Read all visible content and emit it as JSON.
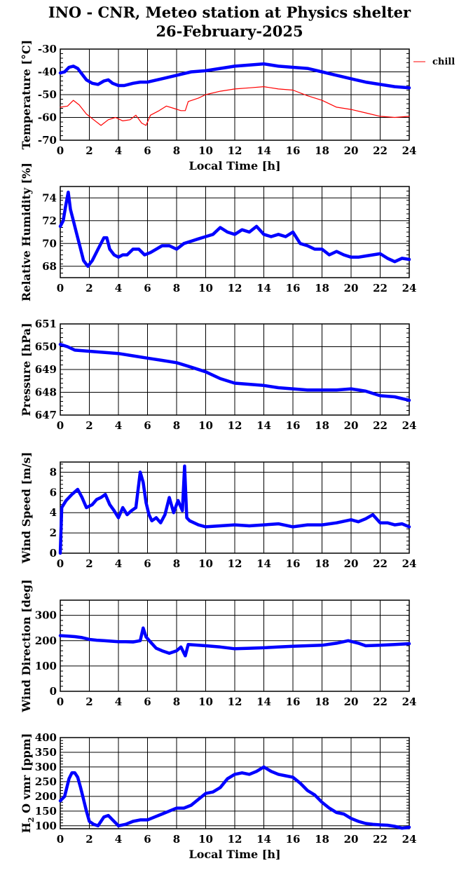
{
  "title_line1": "INO - CNR, Meteo station at Physics shelter",
  "title_line2": "26-February-2025",
  "chart_data": [
    {
      "type": "line",
      "ylabel": "Temperature [°C]",
      "xlabel": "Local Time [h]",
      "xlim": [
        0,
        24
      ],
      "ylim": [
        -70,
        -30
      ],
      "xticks": [
        0,
        2,
        4,
        6,
        8,
        10,
        12,
        14,
        16,
        18,
        20,
        22,
        24
      ],
      "yticks": [
        -70,
        -60,
        -50,
        -40,
        -30
      ],
      "legend": "right",
      "series": [
        {
          "role": "main",
          "color": "#0000ff",
          "x": [
            0,
            0.3,
            0.6,
            0.9,
            1.2,
            1.5,
            1.8,
            2.2,
            2.6,
            3.0,
            3.3,
            3.6,
            4.0,
            4.4,
            5,
            5.5,
            6,
            7,
            8,
            9,
            10,
            11,
            12,
            13,
            14,
            15,
            16,
            17,
            18,
            19,
            20,
            21,
            22,
            23,
            24
          ],
          "y": [
            -40.5,
            -40,
            -38,
            -37.5,
            -38.5,
            -41,
            -43.5,
            -45,
            -45.5,
            -44,
            -43.5,
            -45,
            -46,
            -46,
            -45,
            -44.5,
            -44.5,
            -43,
            -41.5,
            -40,
            -39.5,
            -38.5,
            -37.5,
            -37,
            -36.5,
            -37.5,
            -38,
            -38.5,
            -40,
            -41.5,
            -43,
            -44.5,
            -45.5,
            -46.5,
            -47
          ]
        },
        {
          "role": "chill",
          "name": "chill",
          "color": "#ff0000",
          "x": [
            0,
            0.5,
            0.9,
            1.3,
            1.8,
            2.3,
            2.8,
            3.3,
            3.8,
            4.3,
            4.8,
            5.2,
            5.6,
            5.9,
            6.2,
            6.8,
            7.3,
            7.8,
            8.3,
            8.6,
            8.8,
            9.5,
            10,
            11,
            12,
            13,
            14,
            15,
            16,
            17,
            18,
            19,
            20,
            21,
            22,
            23,
            24
          ],
          "y": [
            -55.5,
            -55,
            -52.5,
            -54.5,
            -58.5,
            -61,
            -63.5,
            -61,
            -60,
            -61.5,
            -61,
            -59,
            -62.5,
            -63.5,
            -59,
            -57,
            -55,
            -56,
            -57,
            -57,
            -53,
            -51.5,
            -50,
            -48.5,
            -47.5,
            -47,
            -46.5,
            -47.5,
            -48,
            -50.5,
            -52.5,
            -55.5,
            -56.5,
            -58,
            -59.5,
            -60,
            -59.5
          ]
        }
      ]
    },
    {
      "type": "line",
      "ylabel": "Relative Humidity [%]",
      "xlabel": "",
      "xlim": [
        0,
        24
      ],
      "ylim": [
        67,
        75
      ],
      "xticks": [
        0,
        2,
        4,
        6,
        8,
        10,
        12,
        14,
        16,
        18,
        20,
        22,
        24
      ],
      "yticks": [
        68,
        70,
        72,
        74
      ],
      "series": [
        {
          "color": "#0000ff",
          "x": [
            0,
            0.2,
            0.4,
            0.55,
            0.7,
            0.9,
            1.1,
            1.3,
            1.6,
            1.9,
            2.2,
            2.6,
            3.0,
            3.2,
            3.4,
            3.7,
            4.0,
            4.3,
            4.6,
            5.0,
            5.4,
            5.8,
            6.2,
            6.6,
            7.0,
            7.5,
            8.0,
            8.5,
            9.0,
            9.5,
            10,
            10.5,
            11,
            11.5,
            12,
            12.5,
            13,
            13.5,
            14,
            14.5,
            15,
            15.5,
            16,
            16.5,
            17,
            17.5,
            18,
            18.5,
            19,
            19.5,
            20,
            20.5,
            21,
            21.5,
            22,
            22.5,
            23,
            23.5,
            24
          ],
          "y": [
            71.5,
            72,
            73.5,
            74.5,
            73,
            72,
            71,
            70,
            68.5,
            68,
            68.5,
            69.5,
            70.5,
            70.5,
            69.5,
            69,
            68.8,
            69,
            69,
            69.5,
            69.5,
            69,
            69.2,
            69.5,
            69.8,
            69.8,
            69.5,
            70,
            70.2,
            70.4,
            70.6,
            70.8,
            71.4,
            71,
            70.8,
            71.2,
            71,
            71.5,
            70.8,
            70.6,
            70.8,
            70.6,
            71,
            70,
            69.8,
            69.5,
            69.5,
            69,
            69.3,
            69,
            68.8,
            68.8,
            68.9,
            69,
            69.1,
            68.7,
            68.4,
            68.7,
            68.6
          ]
        }
      ]
    },
    {
      "type": "line",
      "ylabel": "Pressure [hPa]",
      "xlabel": "",
      "xlim": [
        0,
        24
      ],
      "ylim": [
        647,
        651
      ],
      "xticks": [
        0,
        2,
        4,
        6,
        8,
        10,
        12,
        14,
        16,
        18,
        20,
        22,
        24
      ],
      "yticks": [
        647,
        648,
        649,
        650,
        651
      ],
      "series": [
        {
          "color": "#0000ff",
          "x": [
            0,
            0.5,
            1,
            2,
            3,
            4,
            5,
            6,
            7,
            8,
            9,
            10,
            11,
            12,
            13,
            14,
            15,
            16,
            17,
            18,
            19,
            20,
            21,
            22,
            23,
            24
          ],
          "y": [
            650.1,
            650,
            649.85,
            649.8,
            649.75,
            649.7,
            649.6,
            649.5,
            649.4,
            649.3,
            649.1,
            648.9,
            648.6,
            648.4,
            648.35,
            648.3,
            648.2,
            648.15,
            648.1,
            648.1,
            648.1,
            648.15,
            648.05,
            647.85,
            647.8,
            647.65
          ]
        }
      ]
    },
    {
      "type": "line",
      "ylabel": "Wind Speed [m/s]",
      "xlabel": "",
      "xlim": [
        0,
        24
      ],
      "ylim": [
        0,
        9
      ],
      "xticks": [
        0,
        2,
        4,
        6,
        8,
        10,
        12,
        14,
        16,
        18,
        20,
        22,
        24
      ],
      "yticks": [
        0,
        2,
        4,
        6,
        8
      ],
      "series": [
        {
          "color": "#0000ff",
          "x": [
            0,
            0.1,
            0.4,
            0.8,
            1.2,
            1.5,
            1.8,
            2.2,
            2.5,
            2.8,
            3.1,
            3.4,
            3.7,
            4.0,
            4.3,
            4.6,
            4.9,
            5.2,
            5.5,
            5.7,
            5.9,
            6.1,
            6.3,
            6.6,
            6.9,
            7.2,
            7.5,
            7.8,
            8.1,
            8.4,
            8.55,
            8.7,
            8.9,
            9.5,
            10,
            11,
            12,
            13,
            14,
            15,
            16,
            17,
            18,
            19,
            20,
            20.5,
            21,
            21.5,
            22,
            22.5,
            23,
            23.5,
            24
          ],
          "y": [
            0,
            4.5,
            5.2,
            5.8,
            6.3,
            5.5,
            4.5,
            4.8,
            5.3,
            5.5,
            5.8,
            4.8,
            4.2,
            3.5,
            4.5,
            3.8,
            4.2,
            4.5,
            8,
            7,
            5,
            3.8,
            3.2,
            3.5,
            3,
            3.8,
            5.5,
            4,
            5.2,
            4.2,
            8.6,
            3.5,
            3.2,
            2.8,
            2.6,
            2.7,
            2.8,
            2.7,
            2.8,
            2.9,
            2.6,
            2.8,
            2.8,
            3,
            3.3,
            3.1,
            3.4,
            3.8,
            3,
            3,
            2.8,
            2.9,
            2.6
          ]
        }
      ]
    },
    {
      "type": "line",
      "ylabel": "Wind Direction [deg]",
      "xlabel": "",
      "xlim": [
        0,
        24
      ],
      "ylim": [
        0,
        360
      ],
      "xticks": [
        0,
        2,
        4,
        6,
        8,
        10,
        12,
        14,
        16,
        18,
        20,
        22,
        24
      ],
      "yticks": [
        0,
        100,
        200,
        300
      ],
      "series": [
        {
          "color": "#0000ff",
          "x": [
            0,
            0.5,
            1,
            1.5,
            2,
            2.5,
            3,
            3.5,
            4,
            4.5,
            5,
            5.5,
            5.7,
            5.9,
            6.2,
            6.6,
            7,
            7.5,
            8,
            8.3,
            8.6,
            8.8,
            9.5,
            10,
            11,
            12,
            13,
            14,
            15,
            16,
            17,
            18,
            19,
            19.8,
            20.5,
            21,
            22,
            23,
            24
          ],
          "y": [
            220,
            218,
            216,
            212,
            205,
            202,
            200,
            198,
            196,
            196,
            195,
            200,
            250,
            215,
            195,
            170,
            160,
            150,
            160,
            175,
            140,
            185,
            182,
            180,
            175,
            168,
            170,
            172,
            175,
            178,
            180,
            182,
            190,
            200,
            190,
            180,
            182,
            185,
            188
          ]
        }
      ]
    },
    {
      "type": "line",
      "ylabel": "H2O vmr [ppm]",
      "xlabel": "Local Time [h]",
      "xlim": [
        0,
        24
      ],
      "ylim": [
        90,
        400
      ],
      "xticks": [
        0,
        2,
        4,
        6,
        8,
        10,
        12,
        14,
        16,
        18,
        20,
        22,
        24
      ],
      "yticks": [
        100,
        150,
        200,
        250,
        300,
        350,
        400
      ],
      "series": [
        {
          "color": "#0000ff",
          "x": [
            0,
            0.3,
            0.6,
            0.8,
            1.0,
            1.2,
            1.4,
            1.6,
            1.8,
            2.0,
            2.3,
            2.6,
            3.0,
            3.3,
            3.6,
            4.0,
            4.5,
            5,
            5.5,
            6,
            6.5,
            7,
            7.5,
            8,
            8.5,
            9,
            9.5,
            10,
            10.5,
            11,
            11.5,
            12,
            12.5,
            13,
            13.5,
            14,
            14.5,
            15,
            15.5,
            16,
            16.5,
            17,
            17.5,
            18,
            18.5,
            19,
            19.5,
            20,
            20.5,
            21,
            21.5,
            22,
            22.5,
            23,
            23.5,
            24
          ],
          "y": [
            185,
            200,
            260,
            280,
            280,
            265,
            230,
            190,
            150,
            115,
            105,
            100,
            130,
            135,
            120,
            100,
            105,
            115,
            120,
            120,
            130,
            140,
            150,
            160,
            160,
            170,
            190,
            210,
            215,
            230,
            260,
            275,
            280,
            275,
            285,
            300,
            285,
            275,
            270,
            265,
            245,
            220,
            205,
            180,
            160,
            145,
            140,
            125,
            115,
            108,
            105,
            103,
            102,
            98,
            92,
            95
          ]
        }
      ]
    }
  ],
  "legend": {
    "chill_label": "chill"
  }
}
